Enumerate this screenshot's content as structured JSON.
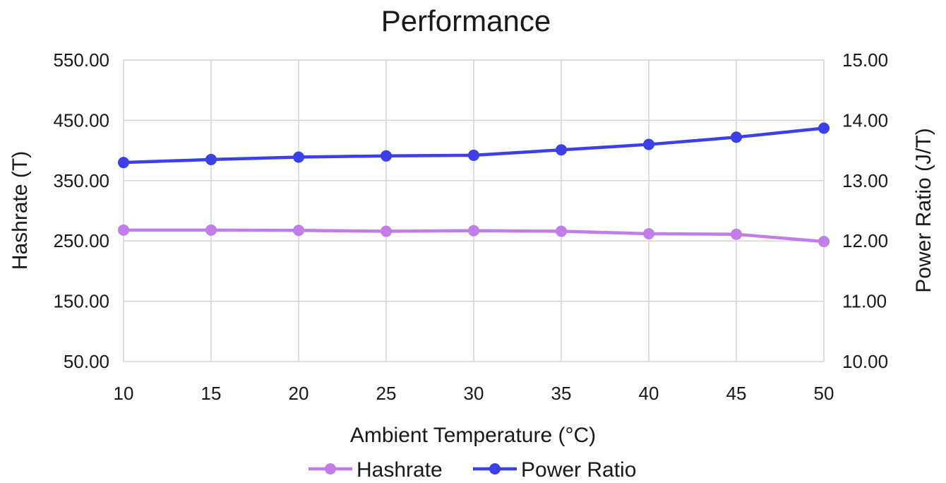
{
  "chart_data": {
    "type": "line",
    "title": "Performance",
    "xlabel": "Ambient Temperature (°C)",
    "ylabel": "Hashrate (T)",
    "y2label": "Power Ratio (J/T)",
    "x": [
      10,
      15,
      20,
      25,
      30,
      35,
      40,
      45,
      50
    ],
    "ylim": [
      50,
      550
    ],
    "y2lim": [
      10,
      15
    ],
    "yticks": [
      "50.00",
      "150.00",
      "250.00",
      "350.00",
      "450.00",
      "550.00"
    ],
    "y2ticks": [
      "10.00",
      "11.00",
      "12.00",
      "13.00",
      "14.00",
      "15.00"
    ],
    "xticks": [
      "10",
      "15",
      "20",
      "25",
      "30",
      "35",
      "40",
      "45",
      "50"
    ],
    "grid": true,
    "legend": "bottom",
    "series": [
      {
        "name": "Hashrate",
        "axis": "left",
        "color": "#c17ee9",
        "values": [
          268,
          268,
          267.5,
          266,
          267,
          266,
          262,
          261,
          249
        ]
      },
      {
        "name": "Power Ratio",
        "axis": "right",
        "color": "#3b40e8",
        "values": [
          13.3,
          13.35,
          13.39,
          13.41,
          13.42,
          13.51,
          13.6,
          13.72,
          13.87
        ]
      }
    ]
  }
}
